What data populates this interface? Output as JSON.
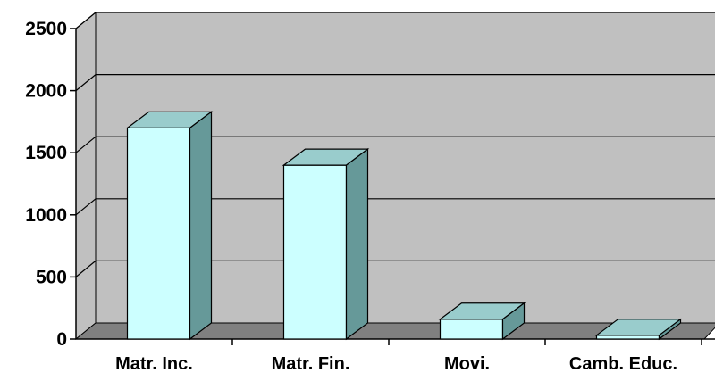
{
  "chart_data": {
    "type": "bar",
    "categories": [
      "Matr. Inc.",
      "Matr. Fin.",
      "Movi.",
      "Camb. Educ."
    ],
    "values": [
      1700,
      1400,
      160,
      30
    ],
    "ylim": [
      0,
      2500
    ],
    "yticks": [
      0,
      500,
      1000,
      1500,
      2000,
      2500
    ],
    "yticklabels": [
      "0",
      "500",
      "1000",
      "1500",
      "2000",
      "2500"
    ],
    "grid": true,
    "legend": "none",
    "colors": {
      "wall": "#c0c0c0",
      "floor": "#808080",
      "bar_front": "#ccffff",
      "bar_top": "#99cccc",
      "bar_side": "#669999",
      "gridline": "#000000"
    }
  }
}
